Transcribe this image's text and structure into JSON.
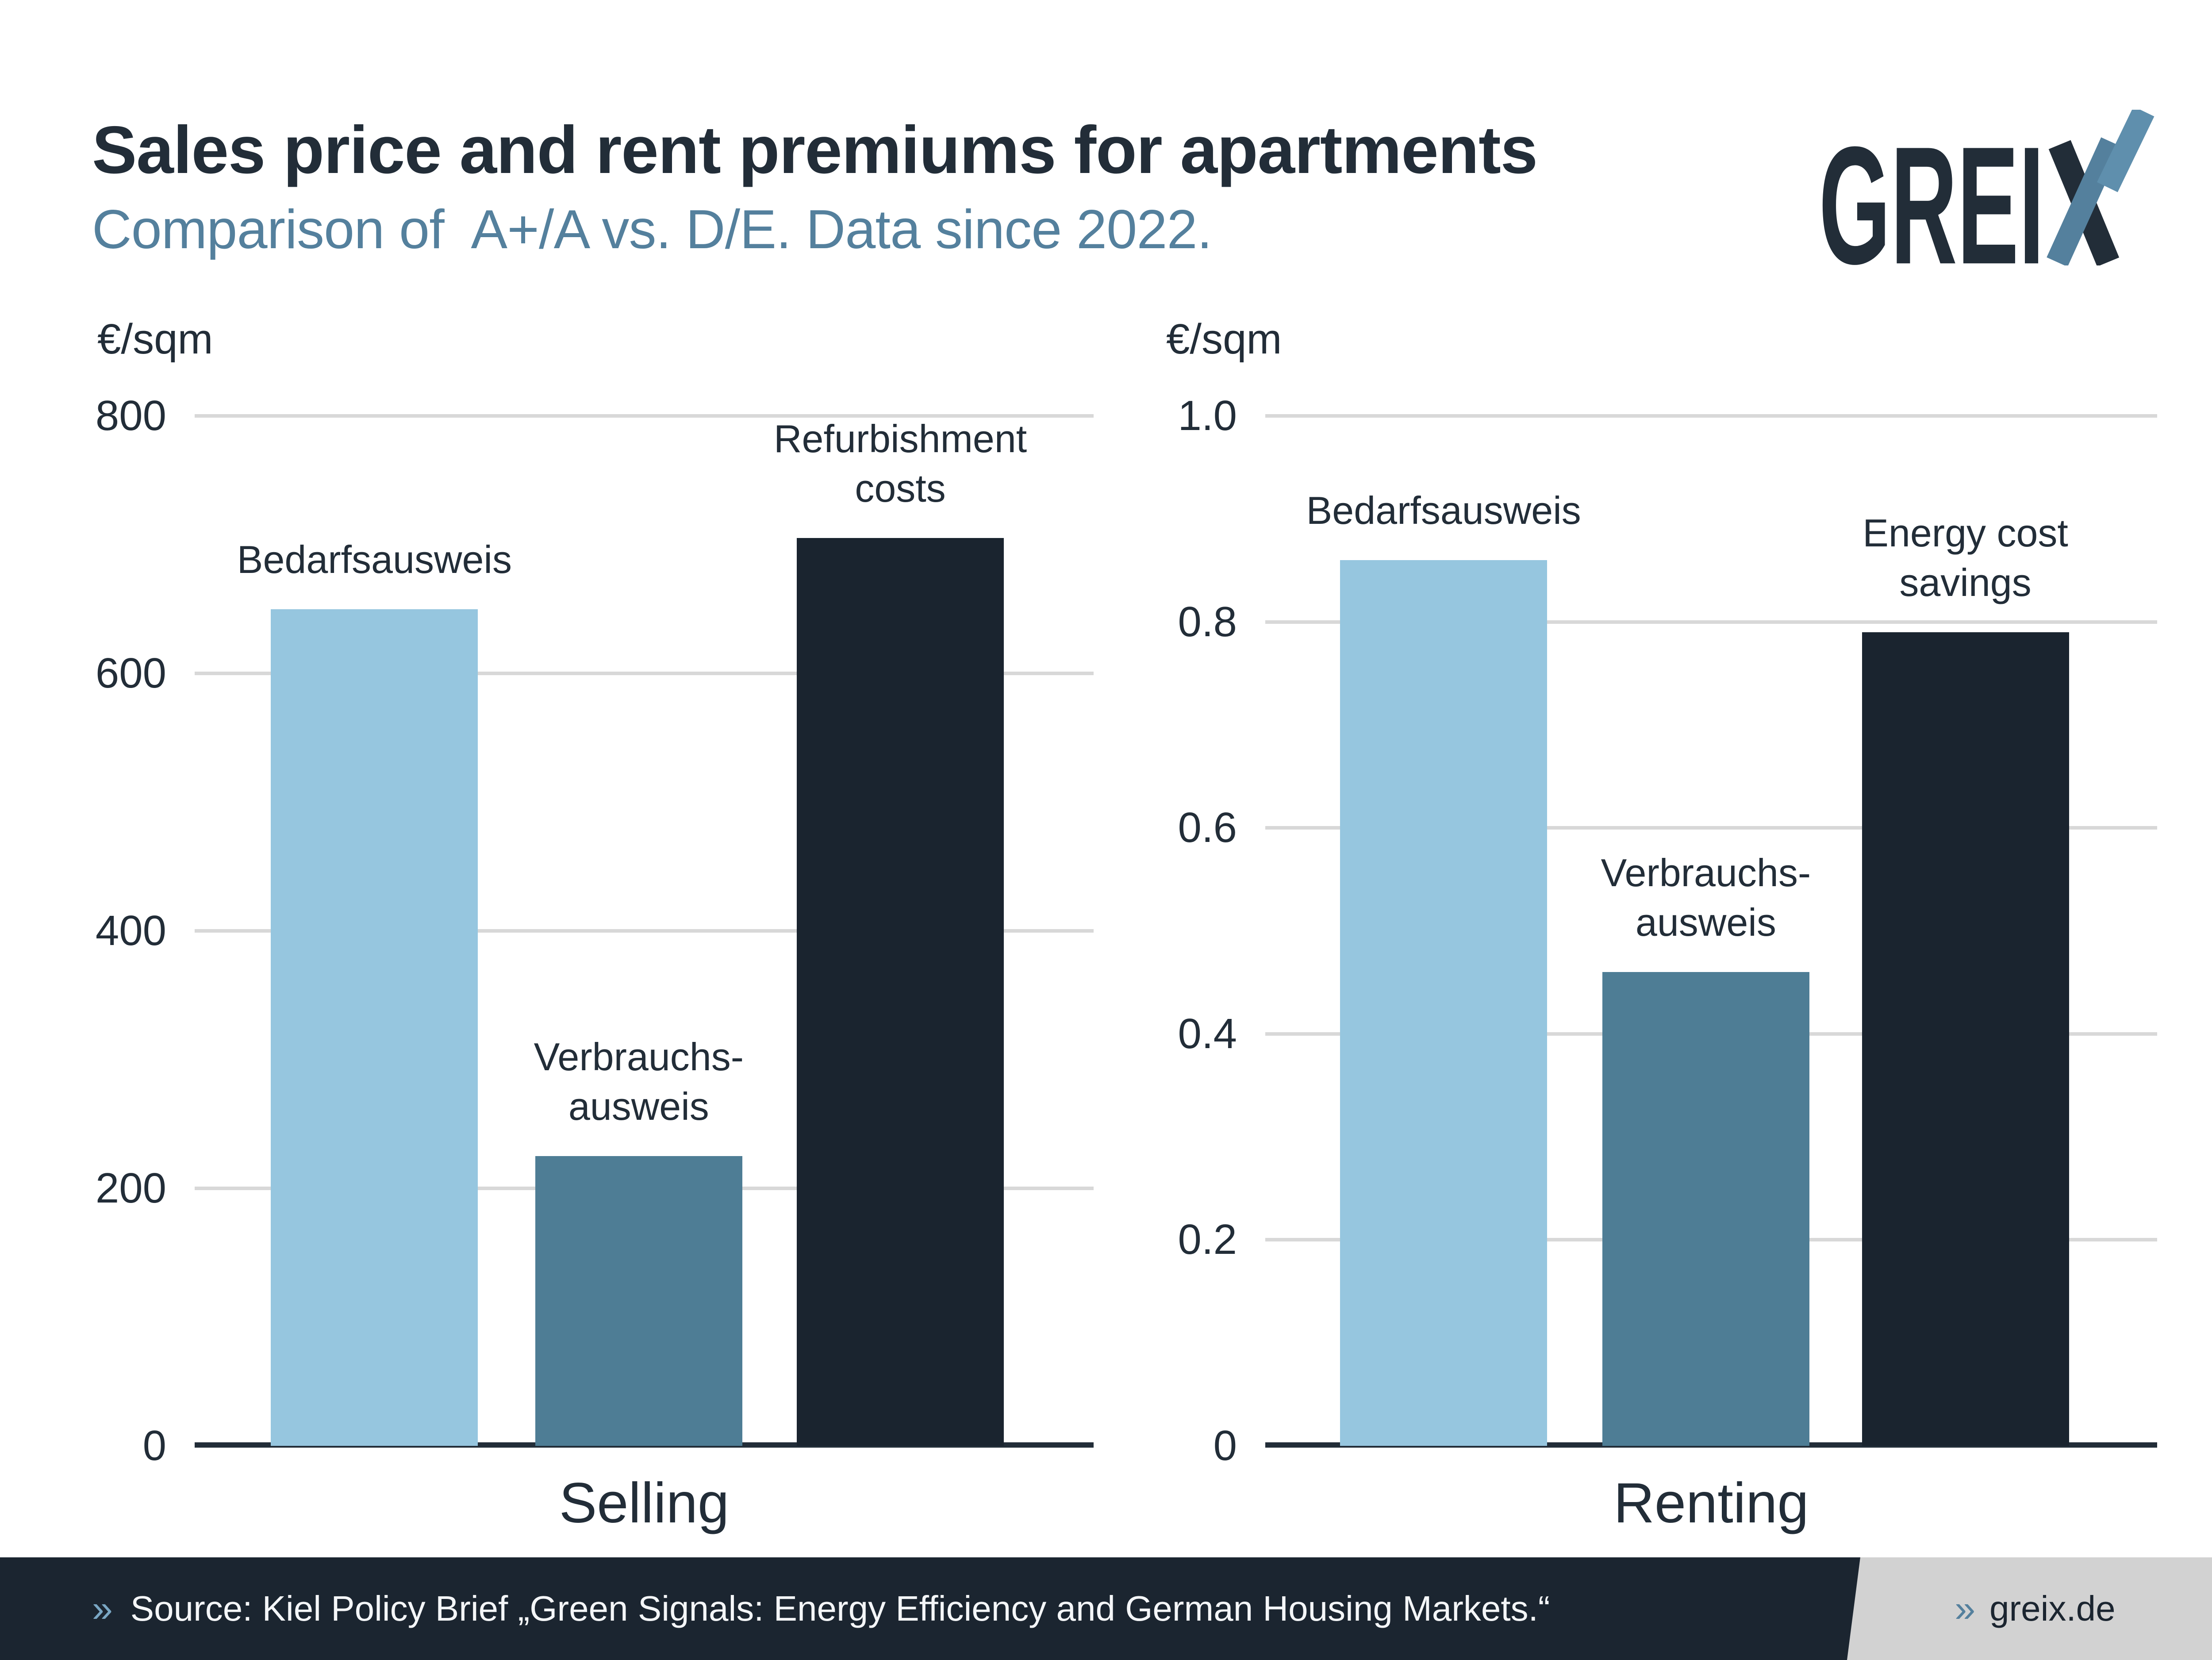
{
  "header": {
    "title": "Sales price and rent premiums for apartments",
    "subtitle": "Comparison of  A+/A vs. D/E. Data since 2022.",
    "logo_letters": "GREI",
    "logo_name": "GREIX"
  },
  "colors": {
    "title": "#222d38",
    "subtitle": "#54809d",
    "bar_light_blue": "#96c6df",
    "bar_medium_blue": "#4e7d95",
    "bar_dark_navy": "#1a242f",
    "gridline": "#d8d8d8",
    "footer_bg": "#1b2530",
    "footer_panel": "#d2d2d2",
    "footer_text": "#f4f6f8"
  },
  "chart_data": [
    {
      "type": "bar",
      "unit": "€/sqm",
      "xlabel": "Selling",
      "categories": [
        "Bedarfsausweis",
        "Verbrauchs-\nausweis",
        "Refurbishment\ncosts"
      ],
      "values": [
        650,
        225,
        705
      ],
      "bar_colors": [
        "#96c6df",
        "#4e7d95",
        "#1a242f"
      ],
      "ylim": [
        0,
        800
      ],
      "yticks": [
        {
          "value": 0,
          "label": "0"
        },
        {
          "value": 200,
          "label": "200"
        },
        {
          "value": 400,
          "label": "400"
        },
        {
          "value": 600,
          "label": "600"
        },
        {
          "value": 800,
          "label": "800"
        }
      ],
      "grid": true,
      "legend": "none"
    },
    {
      "type": "bar",
      "unit": "€/sqm",
      "xlabel": "Renting",
      "categories": [
        "Bedarfsausweis",
        "Verbrauchs-\nausweis",
        "Energy cost\nsavings"
      ],
      "values": [
        0.86,
        0.46,
        0.79
      ],
      "bar_colors": [
        "#96c6df",
        "#4e7d95",
        "#1a242f"
      ],
      "ylim": [
        0,
        1.0
      ],
      "yticks": [
        {
          "value": 0,
          "label": "0"
        },
        {
          "value": 0.2,
          "label": "0.2"
        },
        {
          "value": 0.4,
          "label": "0.4"
        },
        {
          "value": 0.6,
          "label": "0.6"
        },
        {
          "value": 0.8,
          "label": "0.8"
        },
        {
          "value": 1.0,
          "label": "1.0"
        }
      ],
      "grid": true,
      "legend": "none"
    }
  ],
  "footer": {
    "source_chevron": "»",
    "source_text": "Source: Kiel Policy Brief „Green Signals: Energy Efficiency and German Housing Markets.“",
    "site_chevron": "»",
    "site": "greix.de"
  }
}
